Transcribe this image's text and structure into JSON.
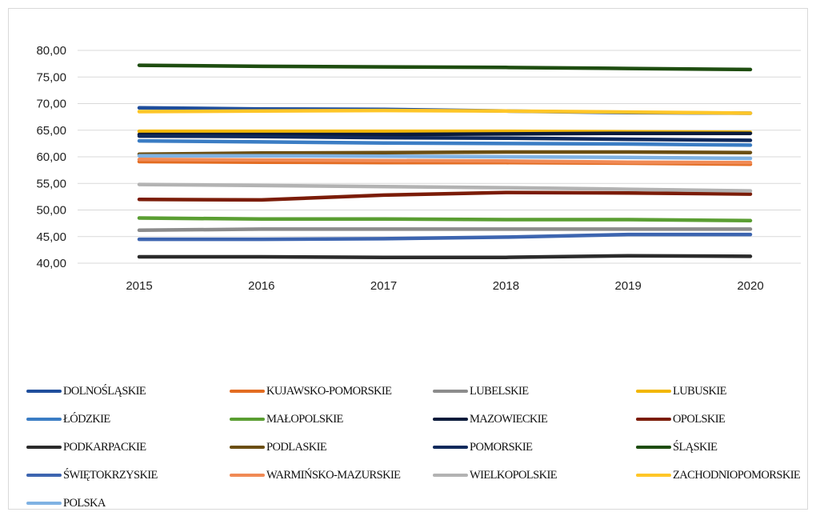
{
  "chart_data": {
    "type": "line",
    "title": "",
    "xlabel": "",
    "ylabel": "",
    "x": [
      "2015",
      "2016",
      "2017",
      "2018",
      "2019",
      "2020"
    ],
    "ylim": [
      40,
      80
    ],
    "y_ticks": [
      "40,00",
      "45,00",
      "50,00",
      "55,00",
      "60,00",
      "65,00",
      "70,00",
      "75,00",
      "80,00"
    ],
    "y_tick_values": [
      40,
      45,
      50,
      55,
      60,
      65,
      70,
      75,
      80
    ],
    "grid": "horizontal",
    "legend_position": "bottom",
    "series": [
      {
        "name": "DOLNOŚLĄSKIE",
        "color": "#1f4e9c",
        "values": [
          69.2,
          69.0,
          68.9,
          68.6,
          68.3,
          68.2
        ]
      },
      {
        "name": "KUJAWSKO-POMORSKIE",
        "color": "#e36c21",
        "values": [
          59.1,
          59.0,
          58.9,
          58.9,
          58.8,
          58.6
        ]
      },
      {
        "name": "LUBELSKIE",
        "color": "#8c8c8c",
        "values": [
          46.2,
          46.4,
          46.4,
          46.4,
          46.4,
          46.4
        ]
      },
      {
        "name": "LUBUSKIE",
        "color": "#f2b705",
        "values": [
          64.8,
          64.8,
          64.8,
          64.8,
          64.7,
          64.6
        ]
      },
      {
        "name": "ŁÓDZKIE",
        "color": "#3b7dc4",
        "values": [
          63.0,
          62.8,
          62.6,
          62.5,
          62.4,
          62.2
        ]
      },
      {
        "name": "MAŁOPOLSKIE",
        "color": "#5a9e32",
        "values": [
          48.5,
          48.3,
          48.3,
          48.2,
          48.2,
          48.0
        ]
      },
      {
        "name": "MAZOWIECKIE",
        "color": "#0b1b3b",
        "values": [
          64.2,
          64.2,
          64.2,
          64.3,
          64.4,
          64.4
        ]
      },
      {
        "name": "OPOLSKIE",
        "color": "#7b1c08",
        "values": [
          52.0,
          51.9,
          52.8,
          53.3,
          53.2,
          53.0
        ]
      },
      {
        "name": "PODKARPACKIE",
        "color": "#2b2b2b",
        "values": [
          41.2,
          41.2,
          41.1,
          41.1,
          41.4,
          41.3
        ]
      },
      {
        "name": "PODLASKIE",
        "color": "#6b4e12",
        "values": [
          60.5,
          60.7,
          60.8,
          60.9,
          60.9,
          60.8
        ]
      },
      {
        "name": "POMORSKIE",
        "color": "#102a5c",
        "values": [
          63.9,
          63.8,
          63.6,
          63.5,
          63.3,
          63.1
        ]
      },
      {
        "name": "ŚLĄSKIE",
        "color": "#1e4d10",
        "values": [
          77.2,
          77.0,
          76.9,
          76.8,
          76.6,
          76.4
        ]
      },
      {
        "name": "ŚWIĘTOKRZYSKIE",
        "color": "#3d65b0",
        "values": [
          44.5,
          44.5,
          44.6,
          44.9,
          45.4,
          45.4
        ]
      },
      {
        "name": "WARMIŃSKO-MAZURSKIE",
        "color": "#f08a55",
        "values": [
          59.5,
          59.4,
          59.3,
          59.2,
          59.0,
          58.9
        ]
      },
      {
        "name": "WIELKOPOLSKIE",
        "color": "#b3b3b3",
        "values": [
          54.8,
          54.6,
          54.4,
          54.2,
          53.9,
          53.6
        ]
      },
      {
        "name": "ZACHODNIOPOMORSKIE",
        "color": "#ffc628",
        "values": [
          68.5,
          68.6,
          68.7,
          68.6,
          68.4,
          68.2
        ]
      },
      {
        "name": "POLSKA",
        "color": "#7fb2e3",
        "values": [
          60.2,
          60.2,
          60.1,
          60.0,
          59.9,
          59.7
        ]
      }
    ]
  }
}
